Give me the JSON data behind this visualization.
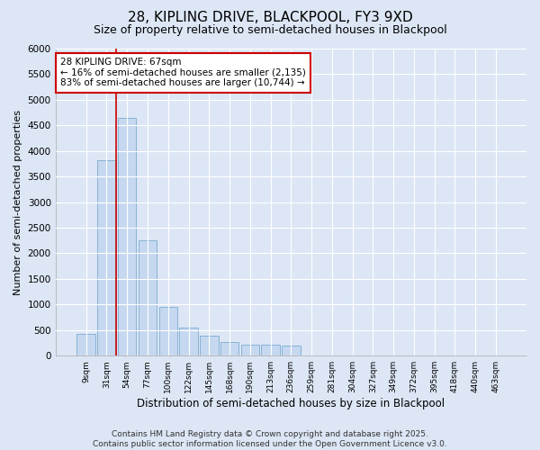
{
  "title1": "28, KIPLING DRIVE, BLACKPOOL, FY3 9XD",
  "title2": "Size of property relative to semi-detached houses in Blackpool",
  "xlabel": "Distribution of semi-detached houses by size in Blackpool",
  "ylabel": "Number of semi-detached properties",
  "categories": [
    "9sqm",
    "31sqm",
    "54sqm",
    "77sqm",
    "100sqm",
    "122sqm",
    "145sqm",
    "168sqm",
    "190sqm",
    "213sqm",
    "236sqm",
    "259sqm",
    "281sqm",
    "304sqm",
    "327sqm",
    "349sqm",
    "372sqm",
    "395sqm",
    "418sqm",
    "440sqm",
    "463sqm"
  ],
  "bar_values": [
    430,
    3820,
    4650,
    2250,
    950,
    550,
    390,
    270,
    220,
    210,
    190,
    0,
    0,
    0,
    0,
    0,
    0,
    0,
    0,
    0,
    0
  ],
  "bar_color": "#c5d8f0",
  "bar_edge_color": "#7aabcf",
  "vline_color": "#cc0000",
  "vline_pos": 1.48,
  "annotation_text": "28 KIPLING DRIVE: 67sqm\n← 16% of semi-detached houses are smaller (2,135)\n83% of semi-detached houses are larger (10,744) →",
  "annotation_box_color": "#ffffff",
  "annotation_box_edge_color": "#cc0000",
  "ylim": [
    0,
    6000
  ],
  "yticks": [
    0,
    500,
    1000,
    1500,
    2000,
    2500,
    3000,
    3500,
    4000,
    4500,
    5000,
    5500,
    6000
  ],
  "bg_color": "#dce6f5",
  "plot_bg_color": "#dce6f5",
  "footer_text": "Contains HM Land Registry data © Crown copyright and database right 2025.\nContains public sector information licensed under the Open Government Licence v3.0.",
  "title1_fontsize": 11,
  "title2_fontsize": 9,
  "annotation_fontsize": 7.5,
  "footer_fontsize": 6.5,
  "ylabel_fontsize": 8,
  "xlabel_fontsize": 8.5
}
